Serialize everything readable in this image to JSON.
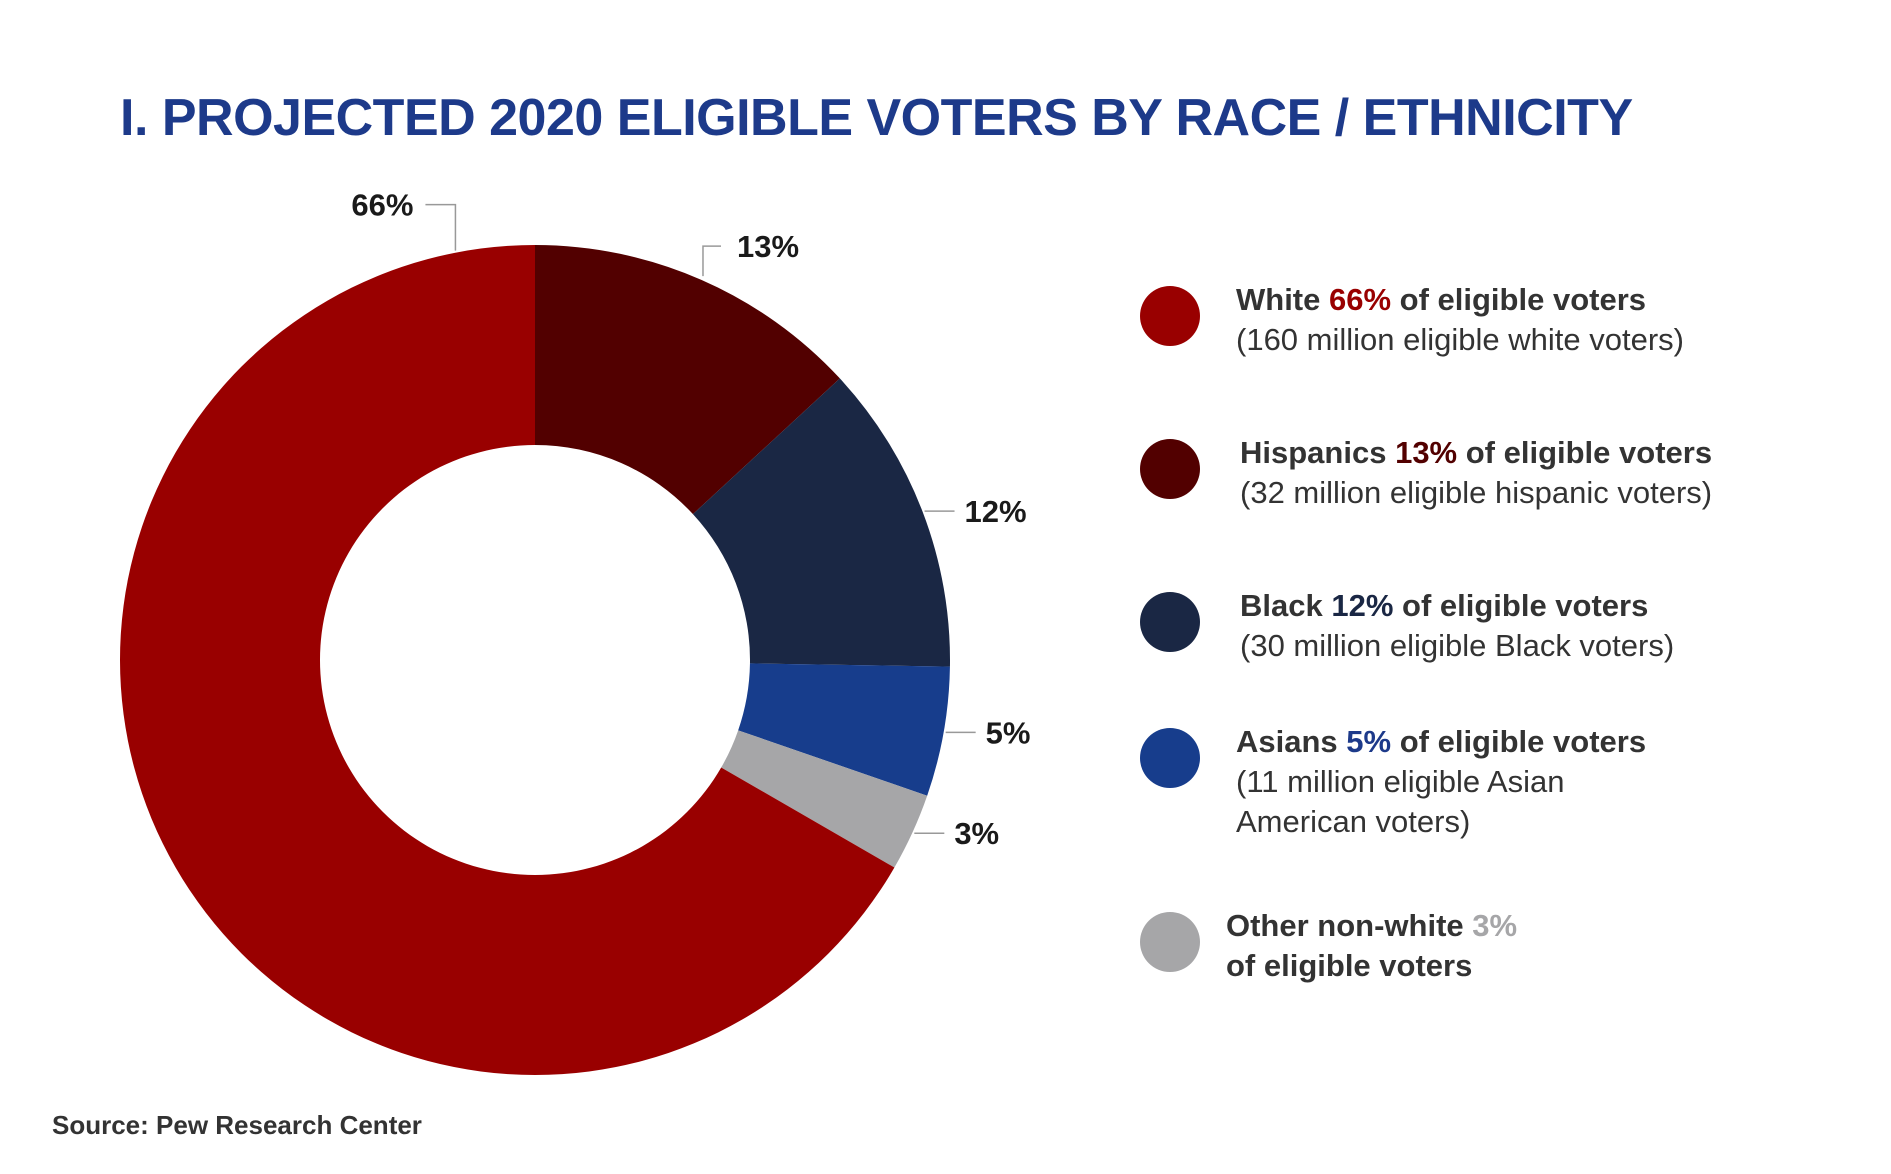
{
  "title": "I. PROJECTED 2020 ELIGIBLE VOTERS BY RACE / ETHNICITY",
  "source": "Source: Pew Research Center",
  "chart_data": {
    "type": "pie",
    "donut": true,
    "title": "I. PROJECTED 2020 ELIGIBLE VOTERS BY RACE / ETHNICITY",
    "categories": [
      "Hispanics",
      "Black",
      "Asians",
      "Other non-white",
      "White"
    ],
    "values": [
      13,
      12,
      5,
      3,
      66
    ],
    "labels": [
      "13%",
      "12%",
      "5%",
      "3%",
      "66%"
    ],
    "colors": [
      "#520000",
      "#1a2744",
      "#173d8c",
      "#a6a6a8",
      "#990000"
    ],
    "legend_placement": "right"
  },
  "legend": [
    {
      "name": "White",
      "pct": "66%",
      "rest": " of eligible voters",
      "sub": "(160 million eligible white voters)",
      "color": "#990000",
      "pct_color": "#990000"
    },
    {
      "name": "Hispanics",
      "pct": "13%",
      "rest": " of eligible voters",
      "sub": "(32 million eligible hispanic voters)",
      "color": "#520000",
      "pct_color": "#520000"
    },
    {
      "name": "Black",
      "pct": "12%",
      "rest": " of eligible voters",
      "sub": "(30 million eligible Black voters)",
      "color": "#1a2744",
      "pct_color": "#1a2744"
    },
    {
      "name": "Asians",
      "pct": "5%",
      "rest": " of eligible voters",
      "sub": "(11 million eligible Asian American voters)",
      "color": "#173d8c",
      "pct_color": "#1d3a8a"
    },
    {
      "name": "Other non-white",
      "pct": "3%",
      "rest": "of eligible voters",
      "sub": "",
      "color": "#a6a6a8",
      "pct_color": "#a6a6a8"
    }
  ]
}
